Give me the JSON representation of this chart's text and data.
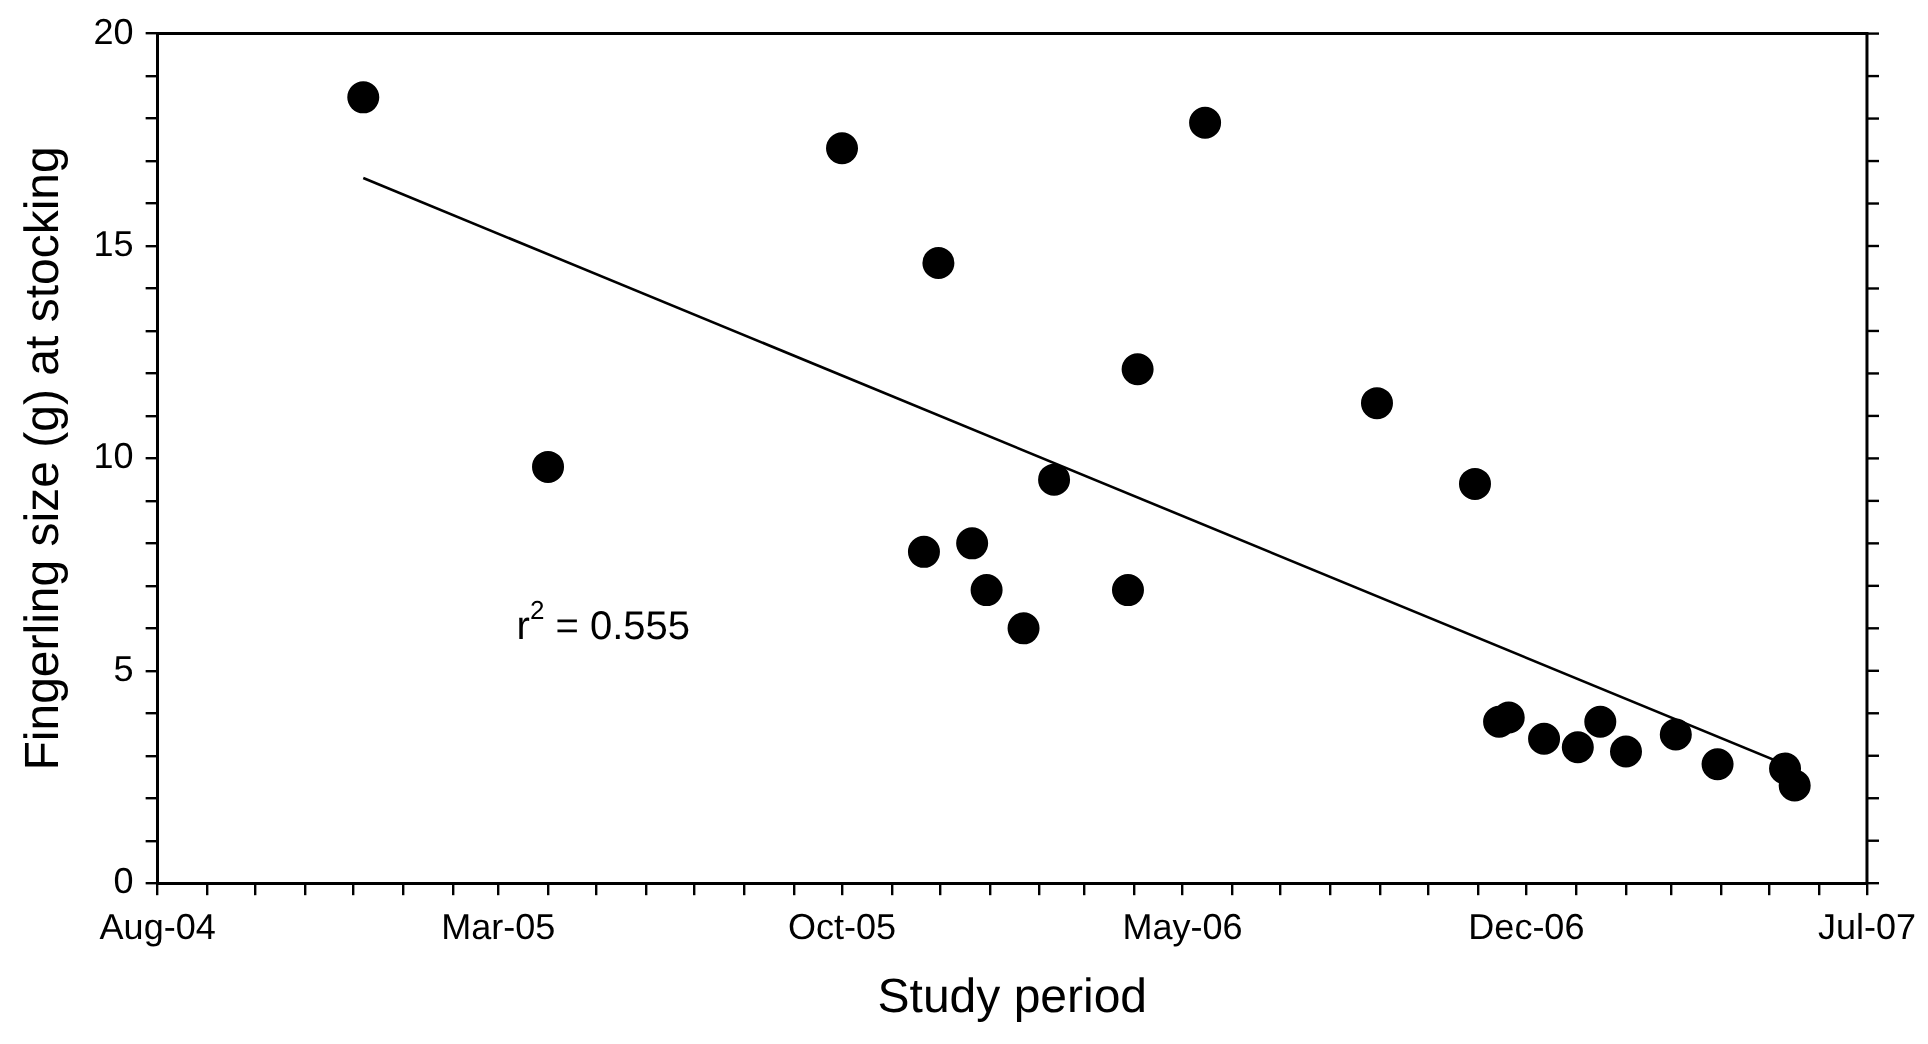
{
  "chart_data": {
    "type": "scatter",
    "xlabel": "Study period",
    "ylabel": "Fingerling size (g) at stocking",
    "xlim": [
      "2004-08-01",
      "2007-07-01"
    ],
    "xticks": [
      {
        "value": "2004-08-01",
        "label": "Aug-04"
      },
      {
        "value": "2004-09-01",
        "label": null
      },
      {
        "value": "2004-10-01",
        "label": null
      },
      {
        "value": "2004-11-01",
        "label": null
      },
      {
        "value": "2004-12-01",
        "label": null
      },
      {
        "value": "2005-01-01",
        "label": null
      },
      {
        "value": "2005-02-01",
        "label": null
      },
      {
        "value": "2005-03-01",
        "label": "Mar-05"
      },
      {
        "value": "2005-04-01",
        "label": null
      },
      {
        "value": "2005-05-01",
        "label": null
      },
      {
        "value": "2005-06-01",
        "label": null
      },
      {
        "value": "2005-07-01",
        "label": null
      },
      {
        "value": "2005-08-01",
        "label": null
      },
      {
        "value": "2005-09-01",
        "label": null
      },
      {
        "value": "2005-10-01",
        "label": "Oct-05"
      },
      {
        "value": "2005-11-01",
        "label": null
      },
      {
        "value": "2005-12-01",
        "label": null
      },
      {
        "value": "2006-01-01",
        "label": null
      },
      {
        "value": "2006-02-01",
        "label": null
      },
      {
        "value": "2006-03-01",
        "label": null
      },
      {
        "value": "2006-04-01",
        "label": null
      },
      {
        "value": "2006-05-01",
        "label": "May-06"
      },
      {
        "value": "2006-06-01",
        "label": null
      },
      {
        "value": "2006-07-01",
        "label": null
      },
      {
        "value": "2006-08-01",
        "label": null
      },
      {
        "value": "2006-09-01",
        "label": null
      },
      {
        "value": "2006-10-01",
        "label": null
      },
      {
        "value": "2006-11-01",
        "label": null
      },
      {
        "value": "2006-12-01",
        "label": "Dec-06"
      },
      {
        "value": "2007-01-01",
        "label": null
      },
      {
        "value": "2007-02-01",
        "label": null
      },
      {
        "value": "2007-03-01",
        "label": null
      },
      {
        "value": "2007-04-01",
        "label": null
      },
      {
        "value": "2007-05-01",
        "label": null
      },
      {
        "value": "2007-06-01",
        "label": null
      },
      {
        "value": "2007-07-01",
        "label": "Jul-07"
      }
    ],
    "ylim": [
      0,
      20
    ],
    "yticks": [
      0,
      {
        "value": 1,
        "label": null
      },
      {
        "value": 2,
        "label": null
      },
      {
        "value": 3,
        "label": null
      },
      {
        "value": 4,
        "label": null
      },
      5,
      {
        "value": 6,
        "label": null
      },
      {
        "value": 7,
        "label": null
      },
      {
        "value": 8,
        "label": null
      },
      {
        "value": 9,
        "label": null
      },
      10,
      {
        "value": 11,
        "label": null
      },
      {
        "value": 12,
        "label": null
      },
      {
        "value": 13,
        "label": null
      },
      {
        "value": 14,
        "label": null
      },
      15,
      {
        "value": 16,
        "label": null
      },
      {
        "value": 17,
        "label": null
      },
      {
        "value": 18,
        "label": null
      },
      {
        "value": 19,
        "label": null
      },
      20
    ],
    "grid": false,
    "legend": false,
    "marker": "circle",
    "annotations": [
      "r$^{2}$ = 0.555"
    ],
    "series": [
      {
        "color": "#000000",
        "x": [
          "2004-12-07",
          "2005-04-01",
          "2005-10-01",
          "2005-11-30",
          "2006-05-15",
          "2006-04-03",
          "2006-08-30",
          "2006-10-30",
          "2006-02-10",
          "2005-11-21",
          "2005-12-21",
          "2005-12-30",
          "2006-01-22",
          "2006-03-28",
          "2006-11-14",
          "2006-11-20",
          "2006-12-12",
          "2007-01-02",
          "2007-01-16",
          "2007-02-01",
          "2007-03-04",
          "2007-03-30",
          "2007-05-11",
          "2007-05-17"
        ],
        "values": [
          18.5,
          9.8,
          17.3,
          14.6,
          17.9,
          12.1,
          11.3,
          9.4,
          9.5,
          7.8,
          8.0,
          6.9,
          6.0,
          6.9,
          3.8,
          3.9,
          3.4,
          3.2,
          3.8,
          3.1,
          3.5,
          2.8,
          2.7,
          2.3
        ]
      },
      {
        "type": "line",
        "color": "#000000",
        "marker": "none",
        "line_style": "solid",
        "x": [
          "2004-12-07",
          "2007-05-17"
        ],
        "values": [
          16.6,
          2.7
        ]
      }
    ]
  }
}
